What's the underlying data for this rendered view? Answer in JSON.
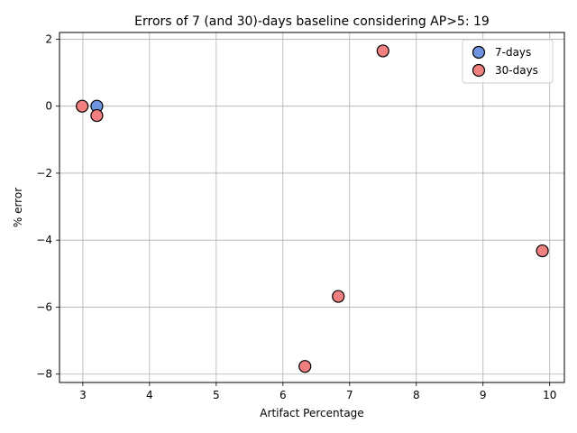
{
  "chart_data": {
    "type": "scatter",
    "title": "Errors of 7 (and 30)-days baseline considering AP>5: 19",
    "xlabel": "Artifact Percentage",
    "ylabel": "% error",
    "xlim": [
      2.65,
      10.22
    ],
    "ylim": [
      -8.25,
      2.2
    ],
    "xticks": [
      3,
      4,
      5,
      6,
      7,
      8,
      9,
      10
    ],
    "yticks": [
      -8,
      -6,
      -4,
      -2,
      0,
      2
    ],
    "grid": true,
    "legend_position": "top-right",
    "series": [
      {
        "name": "7-days",
        "color": "#6f94e0",
        "points": [
          {
            "x": 3.21,
            "y": 0.0
          }
        ]
      },
      {
        "name": "30-days",
        "color": "#f08080",
        "points": [
          {
            "x": 2.99,
            "y": 0.0
          },
          {
            "x": 3.21,
            "y": -0.28
          },
          {
            "x": 7.5,
            "y": 1.65
          },
          {
            "x": 9.89,
            "y": -4.32
          },
          {
            "x": 6.83,
            "y": -5.68
          },
          {
            "x": 6.33,
            "y": -7.77
          }
        ]
      }
    ]
  }
}
